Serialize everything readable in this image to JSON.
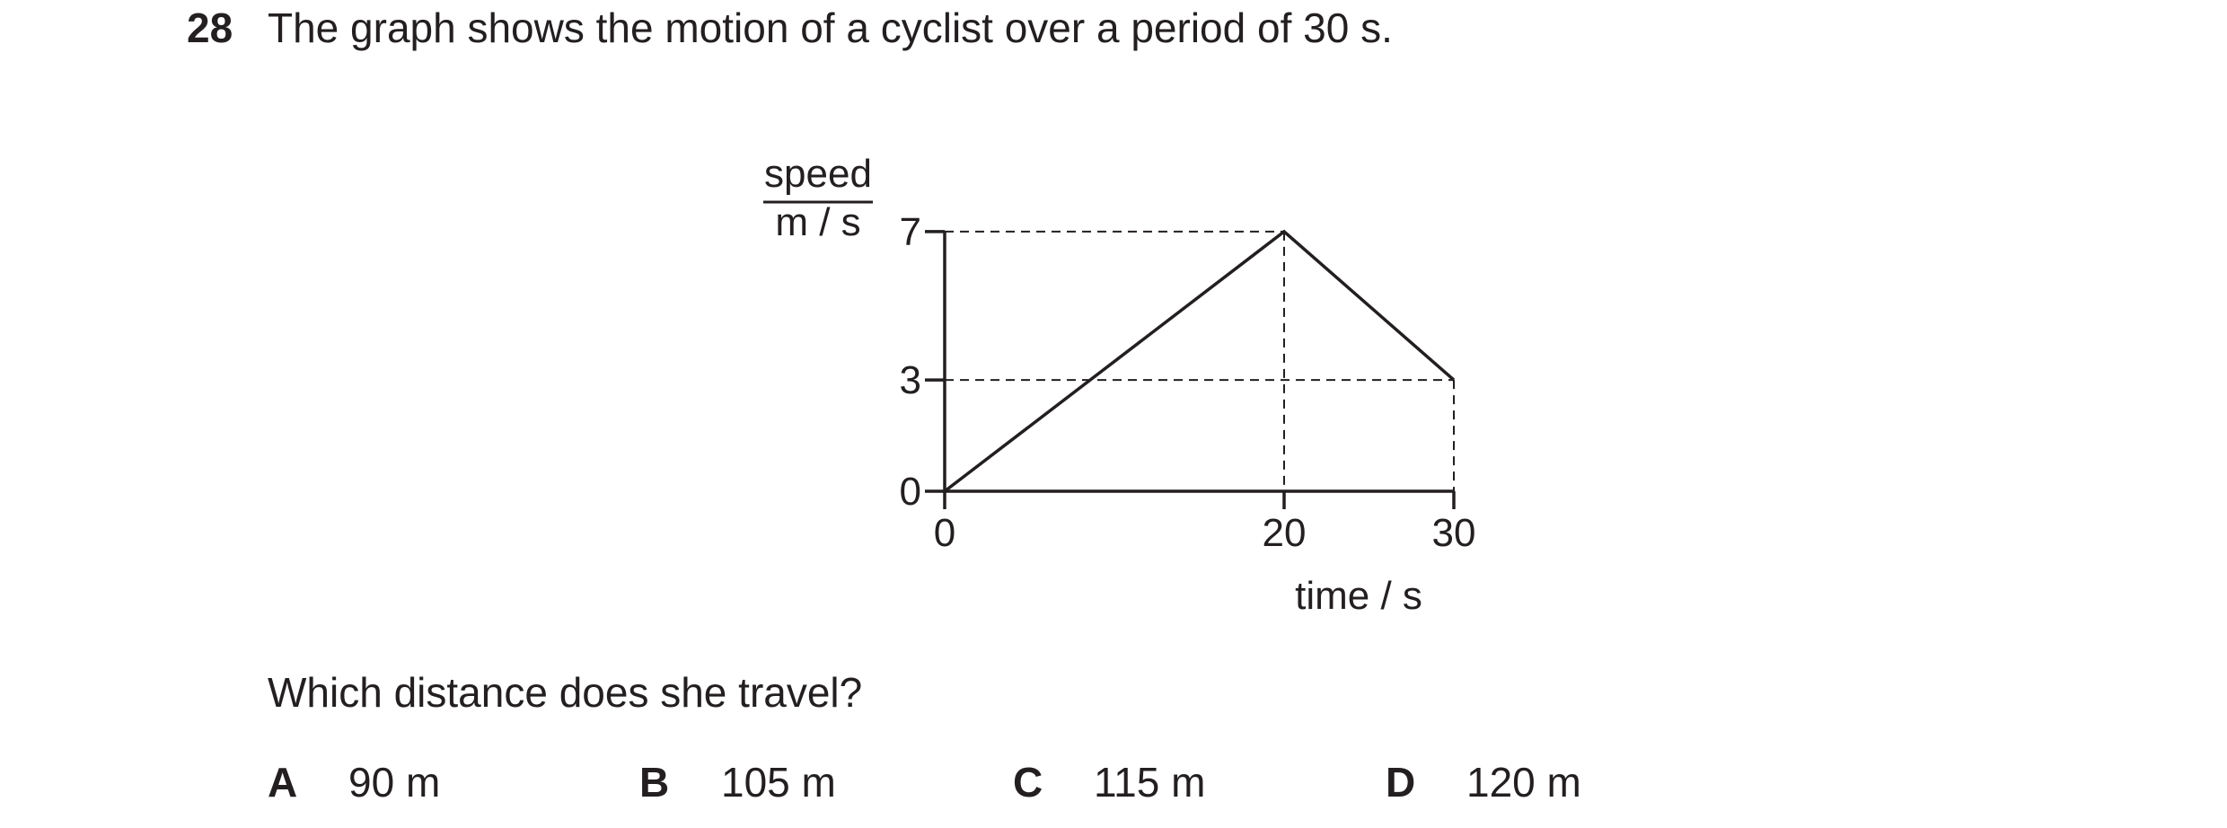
{
  "question": {
    "number": "28",
    "text": "The graph shows the motion of a cyclist over a period of 30 s.",
    "prompt": "Which distance does she travel?"
  },
  "options": [
    {
      "letter": "A",
      "value": "90 m"
    },
    {
      "letter": "B",
      "value": "105 m"
    },
    {
      "letter": "C",
      "value": "115 m"
    },
    {
      "letter": "D",
      "value": "120 m"
    }
  ],
  "chart_data": {
    "type": "line",
    "x": [
      0,
      20,
      30
    ],
    "y": [
      0,
      7,
      3
    ],
    "xlabel": "time / s",
    "ylabel_numerator": "speed",
    "ylabel_denominator": "m / s",
    "xticks": [
      "0",
      "20",
      "30"
    ],
    "yticks": [
      "0",
      "3",
      "7"
    ],
    "xlim": [
      0,
      30
    ],
    "ylim": [
      0,
      7
    ],
    "grid": false,
    "dashed_guides": [
      {
        "from": [
          0,
          7
        ],
        "to": [
          20,
          7
        ]
      },
      {
        "from": [
          20,
          7
        ],
        "to": [
          20,
          0
        ]
      },
      {
        "from": [
          0,
          3
        ],
        "to": [
          30,
          3
        ]
      },
      {
        "from": [
          30,
          3
        ],
        "to": [
          30,
          0
        ]
      }
    ]
  }
}
